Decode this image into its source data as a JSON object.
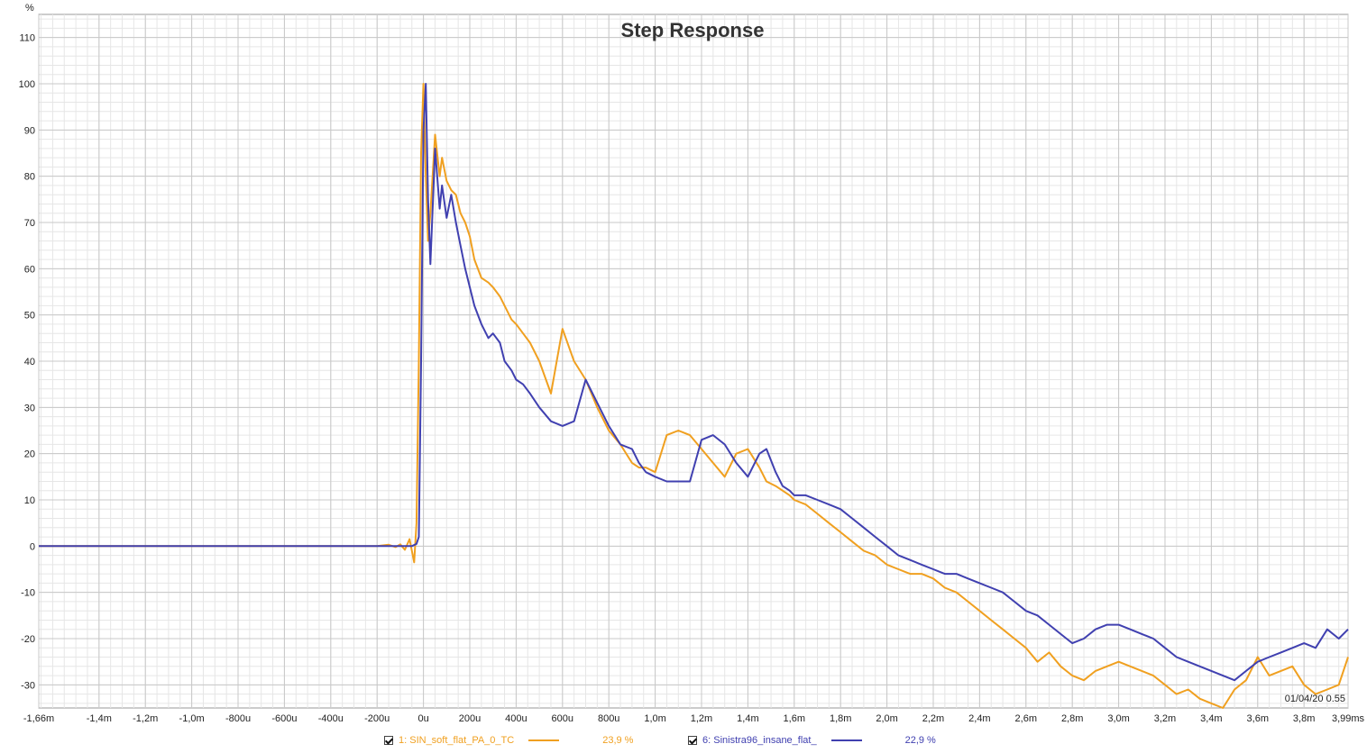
{
  "chart_data": {
    "type": "line",
    "title": "Step Response",
    "ylabel": "%",
    "xlabel": "",
    "xlim": [
      -1.66,
      3.99
    ],
    "ylim": [
      -35,
      115
    ],
    "grid": true,
    "x_ticks": [
      -1.66,
      -1.4,
      -1.2,
      -1.0,
      -0.8,
      -0.6,
      -0.4,
      -0.2,
      0,
      0.2,
      0.4,
      0.6,
      0.8,
      1.0,
      1.2,
      1.4,
      1.6,
      1.8,
      2.0,
      2.2,
      2.4,
      2.6,
      2.8,
      3.0,
      3.2,
      3.4,
      3.6,
      3.8,
      3.99
    ],
    "x_tick_labels": [
      "-1,66m",
      "-1,4m",
      "-1,2m",
      "-1,0m",
      "-800u",
      "-600u",
      "-400u",
      "-200u",
      "0u",
      "200u",
      "400u",
      "600u",
      "800u",
      "1,0m",
      "1,2m",
      "1,4m",
      "1,6m",
      "1,8m",
      "2,0m",
      "2,2m",
      "2,4m",
      "2,6m",
      "2,8m",
      "3,0m",
      "3,2m",
      "3,4m",
      "3,6m",
      "3,8m",
      "3,99ms"
    ],
    "y_ticks": [
      110,
      100,
      90,
      80,
      70,
      60,
      50,
      40,
      30,
      20,
      10,
      0,
      -10,
      -20,
      -30
    ],
    "y_tick_labels": [
      "110",
      "100",
      "90",
      "80",
      "70",
      "60",
      "50",
      "40",
      "30",
      "20",
      "10",
      "0",
      "-10",
      "-20",
      "-30"
    ],
    "stamp": "01/04/20 0.55",
    "series": [
      {
        "name": "1: SIN_soft_flat_PA_0_TC",
        "value_label": "23,9 %",
        "color": "#f0a020",
        "x": [
          -1.66,
          -0.2,
          -0.15,
          -0.12,
          -0.1,
          -0.08,
          -0.06,
          -0.04,
          -0.03,
          -0.02,
          -0.01,
          0.0,
          0.01,
          0.02,
          0.03,
          0.05,
          0.07,
          0.08,
          0.1,
          0.12,
          0.14,
          0.16,
          0.18,
          0.2,
          0.22,
          0.25,
          0.28,
          0.3,
          0.33,
          0.35,
          0.38,
          0.4,
          0.43,
          0.46,
          0.5,
          0.55,
          0.6,
          0.65,
          0.7,
          0.75,
          0.8,
          0.85,
          0.9,
          0.93,
          0.96,
          1.0,
          1.05,
          1.1,
          1.15,
          1.2,
          1.25,
          1.3,
          1.35,
          1.4,
          1.45,
          1.48,
          1.52,
          1.55,
          1.58,
          1.6,
          1.65,
          1.7,
          1.75,
          1.8,
          1.85,
          1.9,
          1.95,
          2.0,
          2.05,
          2.1,
          2.15,
          2.2,
          2.25,
          2.3,
          2.35,
          2.4,
          2.45,
          2.5,
          2.55,
          2.6,
          2.65,
          2.7,
          2.75,
          2.8,
          2.85,
          2.9,
          2.95,
          3.0,
          3.05,
          3.1,
          3.15,
          3.2,
          3.25,
          3.3,
          3.35,
          3.4,
          3.45,
          3.5,
          3.55,
          3.6,
          3.65,
          3.7,
          3.75,
          3.8,
          3.85,
          3.9,
          3.95,
          3.99
        ],
        "y": [
          0,
          0,
          0.3,
          -0.2,
          0.4,
          -0.8,
          1.5,
          -3.5,
          5,
          40,
          85,
          100,
          80,
          66,
          72,
          89,
          80,
          84,
          79,
          77,
          76,
          72,
          70,
          67,
          62,
          58,
          57,
          56,
          54,
          52,
          49,
          48,
          46,
          44,
          40,
          33,
          47,
          40,
          36,
          30,
          25,
          22,
          18,
          17,
          17,
          16,
          24,
          25,
          24,
          21,
          18,
          15,
          20,
          21,
          17,
          14,
          13,
          12,
          11,
          10,
          9,
          7,
          5,
          3,
          1,
          -1,
          -2,
          -4,
          -5,
          -6,
          -6,
          -7,
          -9,
          -10,
          -12,
          -14,
          -16,
          -18,
          -20,
          -22,
          -25,
          -23,
          -26,
          -28,
          -29,
          -27,
          -26,
          -25,
          -26,
          -27,
          -28,
          -30,
          -32,
          -31,
          -33,
          -34,
          -35,
          -31,
          -29,
          -24,
          -28,
          -27,
          -26,
          -30,
          -32,
          -31,
          -30,
          -24
        ]
      },
      {
        "name": "6: Sinistra96_insane_flat_",
        "value_label": "22,9 %",
        "color": "#4040b0",
        "x": [
          -1.66,
          -0.2,
          -0.1,
          -0.05,
          -0.03,
          -0.02,
          -0.01,
          0.0,
          0.01,
          0.02,
          0.03,
          0.05,
          0.07,
          0.08,
          0.1,
          0.12,
          0.14,
          0.16,
          0.18,
          0.2,
          0.22,
          0.25,
          0.28,
          0.3,
          0.33,
          0.35,
          0.38,
          0.4,
          0.43,
          0.46,
          0.5,
          0.55,
          0.6,
          0.65,
          0.7,
          0.75,
          0.8,
          0.85,
          0.9,
          0.93,
          0.96,
          1.0,
          1.05,
          1.1,
          1.15,
          1.2,
          1.25,
          1.3,
          1.35,
          1.4,
          1.45,
          1.48,
          1.52,
          1.55,
          1.58,
          1.6,
          1.65,
          1.7,
          1.75,
          1.8,
          1.85,
          1.9,
          1.95,
          2.0,
          2.05,
          2.1,
          2.15,
          2.2,
          2.25,
          2.3,
          2.35,
          2.4,
          2.45,
          2.5,
          2.55,
          2.6,
          2.65,
          2.7,
          2.75,
          2.8,
          2.85,
          2.9,
          2.95,
          3.0,
          3.05,
          3.1,
          3.15,
          3.2,
          3.25,
          3.3,
          3.35,
          3.4,
          3.45,
          3.5,
          3.55,
          3.6,
          3.65,
          3.7,
          3.75,
          3.8,
          3.85,
          3.9,
          3.95,
          3.99
        ],
        "y": [
          0,
          0,
          0,
          0,
          0.5,
          2,
          40,
          90,
          100,
          75,
          61,
          86,
          73,
          78,
          71,
          76,
          70,
          65,
          60,
          56,
          52,
          48,
          45,
          46,
          44,
          40,
          38,
          36,
          35,
          33,
          30,
          27,
          26,
          27,
          36,
          31,
          26,
          22,
          21,
          18,
          16,
          15,
          14,
          14,
          14,
          23,
          24,
          22,
          18,
          15,
          20,
          21,
          16,
          13,
          12,
          11,
          11,
          10,
          9,
          8,
          6,
          4,
          2,
          0,
          -2,
          -3,
          -4,
          -5,
          -6,
          -6,
          -7,
          -8,
          -9,
          -10,
          -12,
          -14,
          -15,
          -17,
          -19,
          -21,
          -20,
          -18,
          -17,
          -17,
          -18,
          -19,
          -20,
          -22,
          -24,
          -25,
          -26,
          -27,
          -28,
          -29,
          -27,
          -25,
          -24,
          -23,
          -22,
          -21,
          -22,
          -18,
          -20,
          -18
        ]
      }
    ]
  }
}
